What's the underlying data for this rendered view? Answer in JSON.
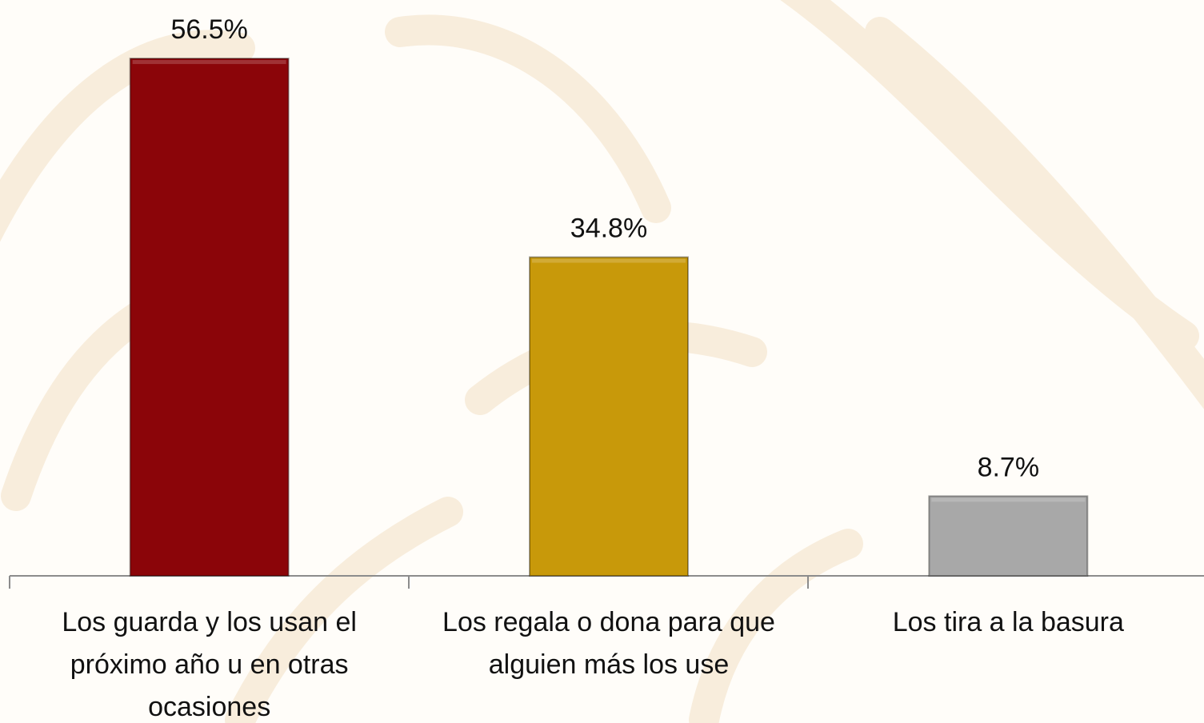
{
  "chart_data": {
    "type": "bar",
    "categories": [
      "Los guarda y los usan el próximo año u en otras ocasiones",
      "Los regala o dona para que alguien más los use",
      "Los tira a la basura"
    ],
    "values": [
      56.5,
      34.8,
      8.7
    ],
    "value_labels": [
      "56.5%",
      "34.8%",
      "8.7%"
    ],
    "colors": [
      "#8b0509",
      "#c8990a",
      "#a8a8a8"
    ],
    "ylim": [
      0,
      60
    ]
  }
}
